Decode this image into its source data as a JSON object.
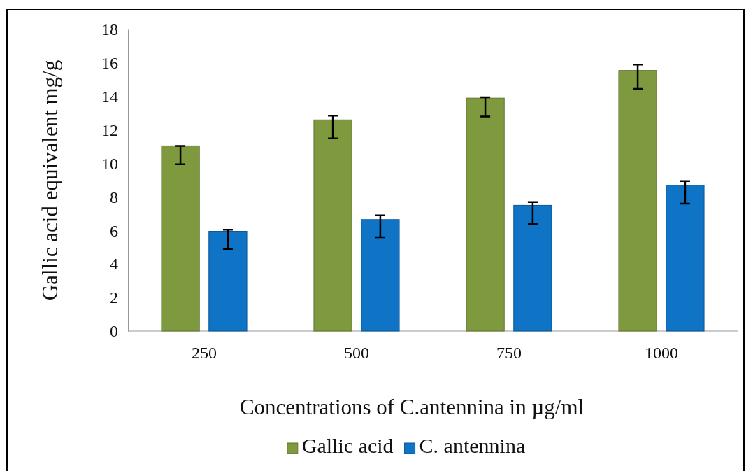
{
  "chart_data": {
    "type": "bar",
    "xlabel": "Concentrations of  C.antennina in µg/ml",
    "ylabel": "Gallic acid equivalent mg/g",
    "categories": [
      "250",
      "500",
      "750",
      "1000"
    ],
    "series": [
      {
        "name": "Gallic acid",
        "color": "#7f9a3e",
        "values": [
          11.05,
          12.6,
          13.9,
          15.55
        ],
        "errors": [
          [
            9.95,
            11.05
          ],
          [
            11.5,
            12.85
          ],
          [
            12.8,
            13.95
          ],
          [
            14.45,
            15.9
          ]
        ]
      },
      {
        "name": "C. antennina",
        "color": "#0f73c6",
        "values": [
          5.95,
          6.65,
          7.5,
          8.7
        ],
        "errors": [
          [
            4.9,
            6.05
          ],
          [
            5.6,
            6.9
          ],
          [
            6.4,
            7.7
          ],
          [
            7.6,
            8.95
          ]
        ]
      }
    ],
    "ylim": [
      0,
      18
    ],
    "yticks": [
      0,
      2,
      4,
      6,
      8,
      10,
      12,
      14,
      16,
      18
    ],
    "grid": false,
    "legend": "bottom"
  }
}
